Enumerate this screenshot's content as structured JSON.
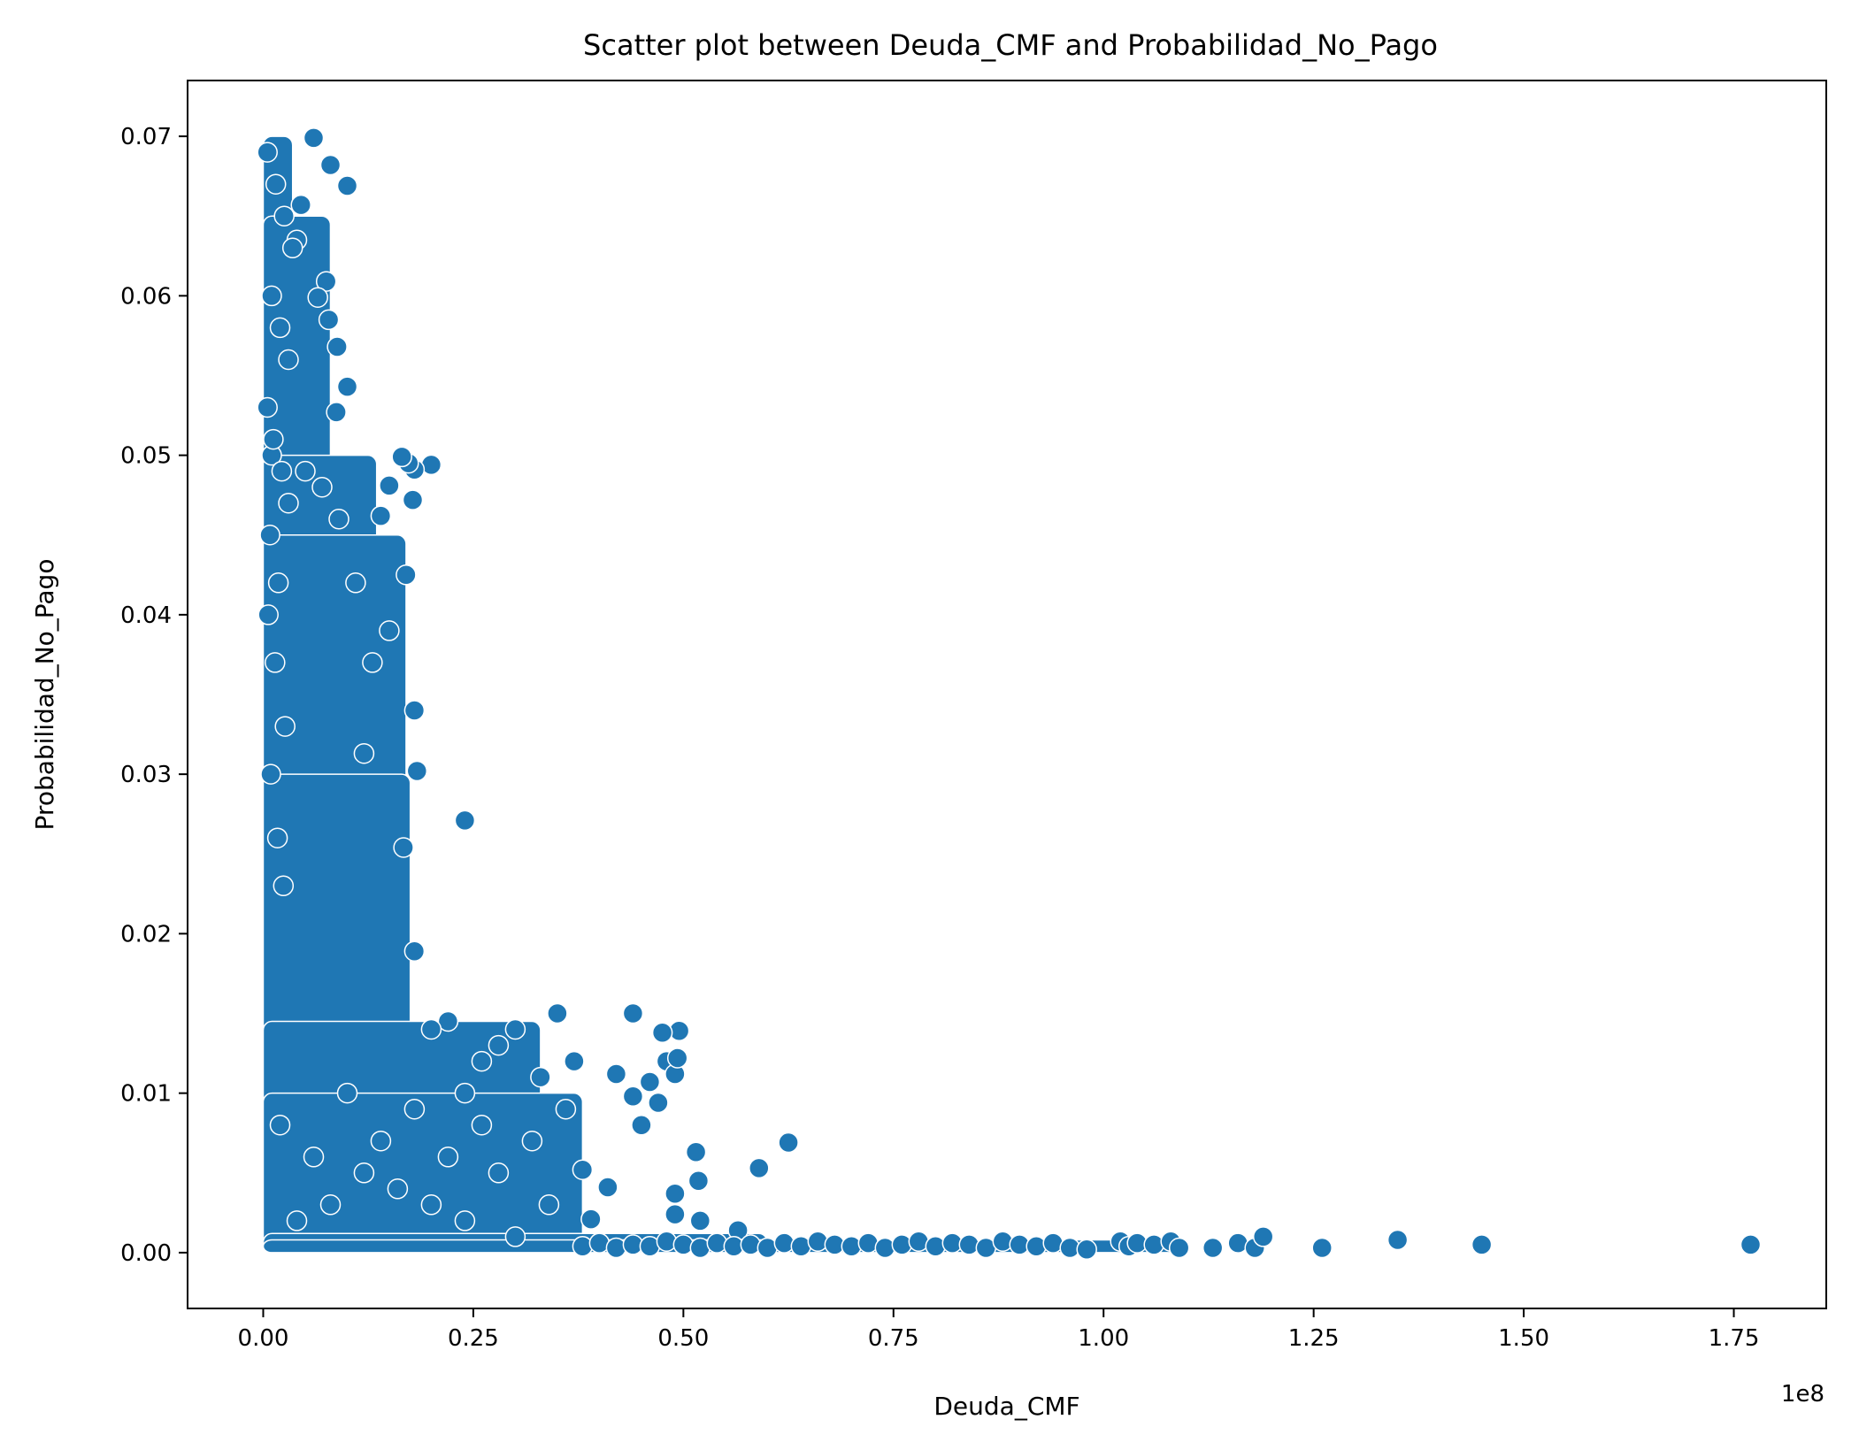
{
  "chart_data": {
    "type": "scatter",
    "title": "Scatter plot between Deuda_CMF and Probabilidad_No_Pago",
    "xlabel": "Deuda_CMF",
    "ylabel": "Probabilidad_No_Pago",
    "x_offset_label": "1e8",
    "x_scale": 100000000,
    "xlim": [
      -9000000,
      186000000
    ],
    "ylim": [
      -0.0035,
      0.0735
    ],
    "x_ticks": [
      0,
      25000000,
      50000000,
      75000000,
      100000000,
      125000000,
      150000000,
      175000000
    ],
    "x_tick_labels": [
      "0.00",
      "0.25",
      "0.50",
      "0.75",
      "1.00",
      "1.25",
      "1.50",
      "1.75"
    ],
    "y_ticks": [
      0,
      0.01,
      0.02,
      0.03,
      0.04,
      0.05,
      0.06,
      0.07
    ],
    "y_tick_labels": [
      "0.00",
      "0.01",
      "0.02",
      "0.03",
      "0.04",
      "0.05",
      "0.06",
      "0.07"
    ],
    "grid": false,
    "marker_color": "#1f77b4",
    "marker_edge_color": "#ffffff",
    "series": [
      {
        "x": [
          6000000,
          10000000,
          8000000,
          7500000,
          4000000,
          8800000,
          10000000,
          8700000,
          7800000,
          6500000,
          4500000,
          20000000,
          18000000,
          17300000,
          17800000,
          16500000,
          15000000,
          17000000,
          14000000,
          24000000,
          18300000,
          16700000,
          12000000,
          18000000,
          44000000,
          49500000,
          47500000,
          48000000,
          49000000,
          49300000,
          46000000,
          42000000,
          44000000,
          45000000,
          47000000,
          51500000,
          51800000,
          62500000,
          59000000,
          49000000,
          49000000,
          41000000,
          39000000,
          52000000,
          56500000,
          37000000,
          36000000,
          38000000,
          35000000,
          33000000,
          30000000,
          28000000,
          26000000,
          24000000,
          22000000,
          20000000,
          18000000,
          15000000,
          13000000,
          11000000,
          9000000,
          7000000,
          5000000,
          3000000,
          1000000,
          2000000,
          4000000,
          6000000,
          8000000,
          10000000,
          12000000,
          14000000,
          16000000,
          18000000,
          20000000,
          22000000,
          24000000,
          26000000,
          28000000,
          30000000,
          32000000,
          34000000,
          500000,
          1500000,
          2500000,
          3500000,
          1000000,
          2000000,
          3000000,
          500000,
          1200000,
          2200000,
          800000,
          1800000,
          600000,
          1400000,
          2600000,
          900000,
          1700000,
          2400000,
          38000000,
          40000000,
          42000000,
          44000000,
          46000000,
          48000000,
          50000000,
          52000000,
          54000000,
          56000000,
          58000000,
          60000000,
          62000000,
          64000000,
          66000000,
          68000000,
          70000000,
          72000000,
          74000000,
          76000000,
          78000000,
          80000000,
          82000000,
          84000000,
          86000000,
          88000000,
          90000000,
          92000000,
          94000000,
          96000000,
          98000000,
          102000000,
          103000000,
          104000000,
          106000000,
          108000000,
          109000000,
          113000000,
          116000000,
          118000000,
          119000000,
          126000000,
          135000000,
          145000000,
          177000000
        ],
        "y": [
          0.0699,
          0.0669,
          0.0682,
          0.0609,
          0.0635,
          0.0568,
          0.0543,
          0.0527,
          0.0585,
          0.0599,
          0.0657,
          0.0494,
          0.0491,
          0.0495,
          0.0472,
          0.0499,
          0.0481,
          0.0425,
          0.0462,
          0.0271,
          0.0302,
          0.0254,
          0.0313,
          0.0189,
          0.015,
          0.0139,
          0.0138,
          0.012,
          0.0112,
          0.0122,
          0.0107,
          0.0112,
          0.0098,
          0.008,
          0.0094,
          0.0063,
          0.0045,
          0.0069,
          0.0053,
          0.0037,
          0.0024,
          0.0041,
          0.0021,
          0.002,
          0.0014,
          0.012,
          0.009,
          0.0052,
          0.015,
          0.011,
          0.014,
          0.013,
          0.012,
          0.01,
          0.0145,
          0.014,
          0.034,
          0.039,
          0.037,
          0.042,
          0.046,
          0.048,
          0.049,
          0.047,
          0.05,
          0.008,
          0.002,
          0.006,
          0.003,
          0.01,
          0.005,
          0.007,
          0.004,
          0.009,
          0.003,
          0.006,
          0.002,
          0.008,
          0.005,
          0.001,
          0.007,
          0.003,
          0.069,
          0.067,
          0.065,
          0.063,
          0.06,
          0.058,
          0.056,
          0.053,
          0.051,
          0.049,
          0.045,
          0.042,
          0.04,
          0.037,
          0.033,
          0.03,
          0.026,
          0.023,
          0.0004,
          0.0006,
          0.0003,
          0.0005,
          0.0004,
          0.0007,
          0.0005,
          0.0003,
          0.0006,
          0.0004,
          0.0005,
          0.0003,
          0.0006,
          0.0004,
          0.0007,
          0.0005,
          0.0004,
          0.0006,
          0.0003,
          0.0005,
          0.0007,
          0.0004,
          0.0006,
          0.0005,
          0.0003,
          0.0007,
          0.0005,
          0.0004,
          0.0006,
          0.0003,
          0.0002,
          0.0007,
          0.0004,
          0.0006,
          0.0005,
          0.0007,
          0.0003,
          0.0003,
          0.0006,
          0.0003,
          0.001,
          0.0003,
          0.0008,
          0.0005,
          0.0005
        ]
      }
    ]
  }
}
